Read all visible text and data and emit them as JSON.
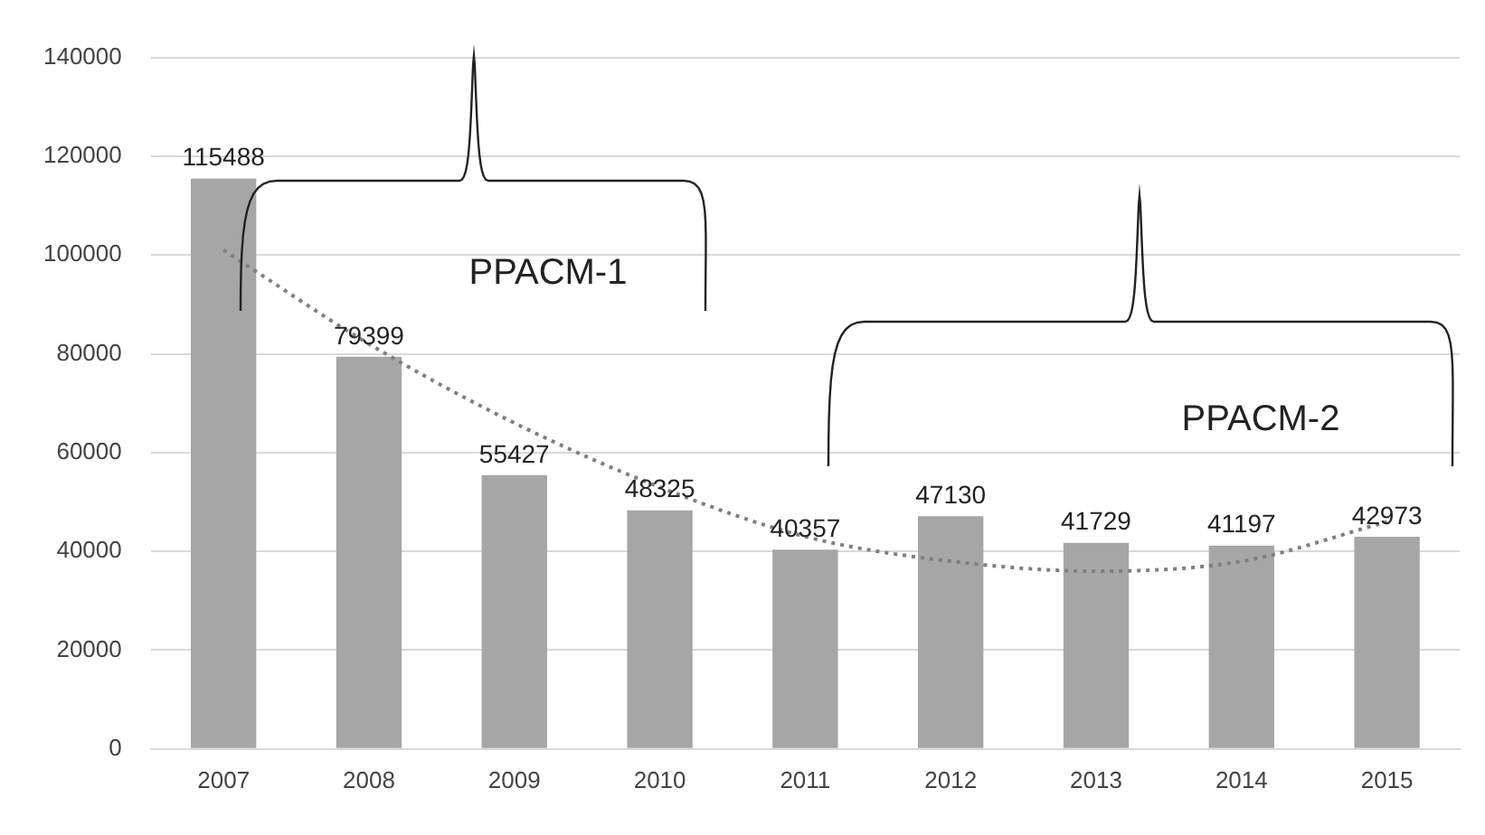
{
  "chart_data": {
    "type": "bar",
    "categories": [
      "2007",
      "2008",
      "2009",
      "2010",
      "2011",
      "2012",
      "2013",
      "2014",
      "2015"
    ],
    "series": [
      {
        "color": "#a6a6a6",
        "values": [
          115488,
          79399,
          55427,
          48325,
          40357,
          47130,
          41729,
          41197,
          42973
        ]
      },
      {
        "type": "line",
        "color": "#7f7f7f",
        "line_style": "dotted",
        "marker": "none",
        "values": [
          101000,
          82000,
          66000,
          53000,
          43000,
          38000,
          36000,
          38000,
          46000
        ]
      }
    ],
    "ylim": [
      0,
      140000
    ],
    "yticks": [
      0,
      20000,
      40000,
      60000,
      80000,
      100000,
      120000,
      140000
    ],
    "grid": "y",
    "legend": false,
    "value_labels": [
      "115488",
      "79399",
      "55427",
      "48325",
      "40357",
      "47130",
      "41729",
      "41197",
      "42973"
    ],
    "annotations": [
      "PPACM-1",
      "PPACM-2"
    ]
  }
}
